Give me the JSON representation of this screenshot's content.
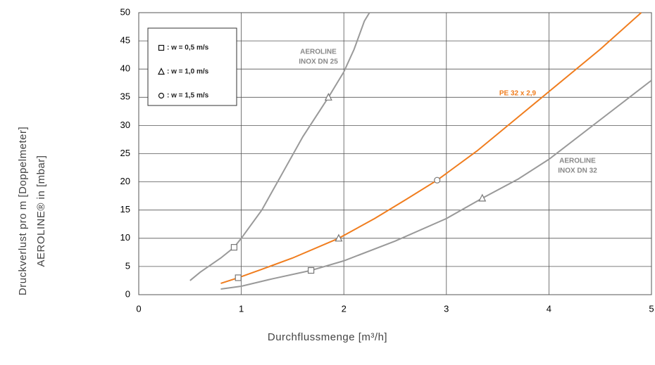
{
  "chart_data": {
    "type": "line",
    "x_label": "Durchflussmenge [m³/h]",
    "y_label": [
      "Druckverlust pro m [Doppelmeter]",
      "AEROLINE® in [mbar]"
    ],
    "xlim": [
      0,
      5
    ],
    "xticks": [
      0,
      1,
      2,
      3,
      4,
      5
    ],
    "ylim": [
      0,
      50
    ],
    "yticks": [
      0,
      5,
      10,
      15,
      20,
      25,
      30,
      35,
      40,
      45,
      50
    ],
    "grid": true,
    "series": [
      {
        "label": [
          "AEROLINE",
          "INOX DN 25"
        ],
        "color": "#999999",
        "x": [
          0.5,
          0.6,
          0.8,
          0.93,
          1.0,
          1.2,
          1.4,
          1.6,
          1.85,
          2.0,
          2.1,
          2.2,
          2.25
        ],
        "values": [
          2.5,
          4,
          6.5,
          8.4,
          10,
          15,
          21.5,
          28,
          35,
          39.5,
          43.5,
          48.5,
          50
        ]
      },
      {
        "label": [
          "PE 32 x 2,9"
        ],
        "color": "#f07d1e",
        "x": [
          0.8,
          0.97,
          1.2,
          1.5,
          1.95,
          2.3,
          2.6,
          2.91,
          3.3,
          3.7,
          4.0,
          4.5,
          4.9
        ],
        "values": [
          2,
          3,
          4.5,
          6.5,
          10,
          13.5,
          16.8,
          20.3,
          25.5,
          31.5,
          36,
          43.5,
          50
        ]
      },
      {
        "label": [
          "AEROLINE",
          "INOX DN 32"
        ],
        "color": "#999999",
        "x": [
          0.8,
          1.0,
          1.3,
          1.68,
          2.0,
          2.5,
          3.0,
          3.35,
          3.7,
          4.0,
          4.5,
          5.0
        ],
        "values": [
          1,
          1.5,
          2.8,
          4.3,
          6,
          9.5,
          13.5,
          17.1,
          20.5,
          24,
          31,
          38
        ]
      }
    ],
    "markers": [
      {
        "shape": "square",
        "x": 0.93,
        "y": 8.4
      },
      {
        "shape": "square",
        "x": 0.97,
        "y": 3
      },
      {
        "shape": "square",
        "x": 1.68,
        "y": 4.3
      },
      {
        "shape": "triangle",
        "x": 1.85,
        "y": 35
      },
      {
        "shape": "triangle",
        "x": 1.95,
        "y": 10
      },
      {
        "shape": "triangle",
        "x": 3.35,
        "y": 17.1
      },
      {
        "shape": "circle",
        "x": 2.91,
        "y": 20.3
      }
    ],
    "legend": [
      {
        "shape": "square",
        "label": ": w = 0,5 m/s"
      },
      {
        "shape": "triangle",
        "label": ": w = 1,0 m/s"
      },
      {
        "shape": "circle",
        "label": ": w = 1,5 m/s"
      }
    ]
  }
}
